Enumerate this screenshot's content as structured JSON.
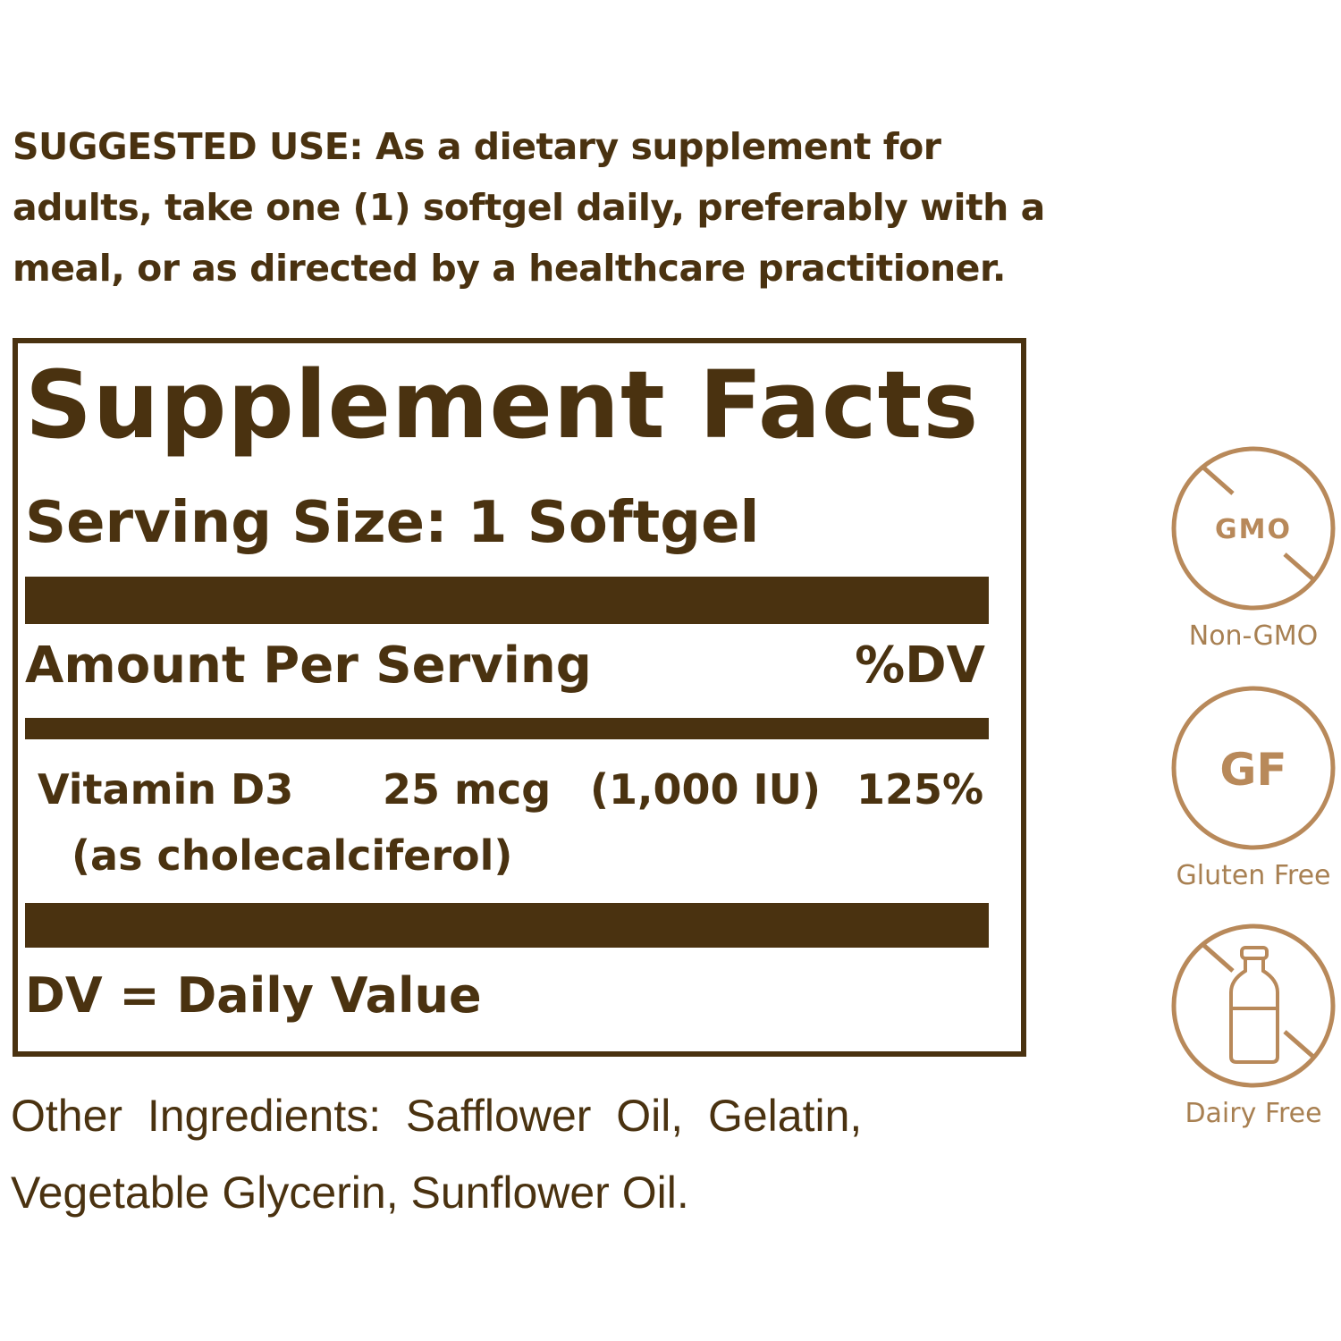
{
  "suggested_use": {
    "lines": [
      "SUGGESTED USE: As a dietary supplement for",
      "adults, take one (1) softgel daily, preferably with a",
      "meal, or as directed by a healthcare practitioner."
    ]
  },
  "facts": {
    "title": "Supplement Facts",
    "serving_size": "Serving Size: 1 Softgel",
    "amount_header": "Amount Per Serving",
    "dv_header": "%DV",
    "nutrient": {
      "name": "Vitamin D3",
      "form": "(as cholecalciferol)",
      "amount": "25 mcg",
      "iu": "(1,000 IU)",
      "dv": "125%"
    },
    "footnote": "DV = Daily Value"
  },
  "other_ingredients": {
    "lines": [
      "Other  Ingredients:  Safflower  Oil,  Gelatin,",
      "Vegetable Glycerin, Sunflower Oil."
    ]
  },
  "badges": [
    {
      "icon": "no-gmo-icon",
      "symbol": "GMO",
      "label": "Non-GMO"
    },
    {
      "icon": "gluten-free-icon",
      "symbol": "GF",
      "label": "Gluten Free"
    },
    {
      "icon": "dairy-free-icon",
      "symbol": "",
      "label": "Dairy Free"
    }
  ],
  "colors": {
    "text": "#4a3210",
    "badge": "#b8895a"
  }
}
